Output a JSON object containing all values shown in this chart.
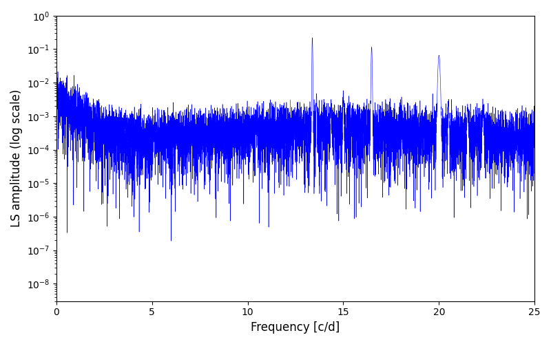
{
  "xlabel": "Frequency [c/d]",
  "ylabel": "LS amplitude (log scale)",
  "line_color": "#0000FF",
  "xlim": [
    0,
    25
  ],
  "ylim": [
    3e-09,
    1.0
  ],
  "seed": 12345,
  "n_points": 8000,
  "peak1_freq": 13.38,
  "peak1_amp": 0.22,
  "peak2_freq": 16.48,
  "peak2_amp": 0.115,
  "peak3_freq": 20.0,
  "peak3_amp": 0.065,
  "figsize": [
    8.0,
    5.0
  ],
  "dpi": 100
}
